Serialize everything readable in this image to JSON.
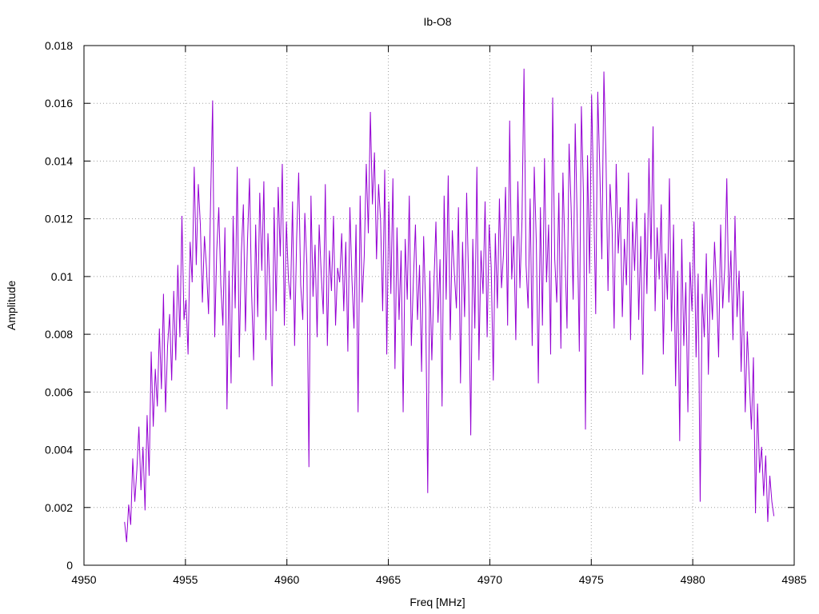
{
  "chart_data": {
    "type": "line",
    "title": "Ib-O8",
    "xlabel": "Freq [MHz]",
    "ylabel": "Amplitude",
    "xlim": [
      4950,
      4985
    ],
    "ylim": [
      0,
      0.018
    ],
    "grid": true,
    "xticks": [
      4950,
      4955,
      4960,
      4965,
      4970,
      4975,
      4980,
      4985
    ],
    "xtick_labels": [
      "4950",
      "4955",
      "4960",
      "4965",
      "4970",
      "4975",
      "4980",
      "4985"
    ],
    "yticks": [
      0,
      0.002,
      0.004,
      0.006,
      0.008,
      0.01,
      0.012,
      0.014,
      0.016,
      0.018
    ],
    "ytick_labels": [
      "0",
      "0.002",
      "0.004",
      "0.006",
      "0.008",
      "0.01",
      "0.012",
      "0.014",
      "0.016",
      "0.018"
    ],
    "series": [
      {
        "color": "#9400d3",
        "x_start": 4952.0,
        "x_end": 4984.0,
        "values": [
          0.0015,
          0.0008,
          0.0021,
          0.0014,
          0.0037,
          0.0022,
          0.0033,
          0.0048,
          0.0026,
          0.0041,
          0.0019,
          0.0052,
          0.0031,
          0.0074,
          0.0048,
          0.0068,
          0.0055,
          0.0082,
          0.0061,
          0.0094,
          0.0053,
          0.0076,
          0.0087,
          0.0064,
          0.0095,
          0.0071,
          0.0104,
          0.0079,
          0.0121,
          0.0085,
          0.0092,
          0.0073,
          0.0112,
          0.0098,
          0.0138,
          0.0104,
          0.0132,
          0.0118,
          0.0091,
          0.0114,
          0.0103,
          0.0087,
          0.0126,
          0.0161,
          0.0079,
          0.0109,
          0.0124,
          0.0097,
          0.0083,
          0.0117,
          0.0054,
          0.0102,
          0.0063,
          0.0121,
          0.0089,
          0.0138,
          0.0072,
          0.0108,
          0.0125,
          0.0081,
          0.0112,
          0.0134,
          0.0095,
          0.0071,
          0.0118,
          0.0086,
          0.0129,
          0.0102,
          0.0133,
          0.0078,
          0.0115,
          0.0094,
          0.0062,
          0.0124,
          0.0088,
          0.0131,
          0.0107,
          0.0139,
          0.0083,
          0.0119,
          0.0099,
          0.0092,
          0.0126,
          0.0076,
          0.0113,
          0.0136,
          0.0097,
          0.0085,
          0.0122,
          0.0104,
          0.0034,
          0.0128,
          0.0093,
          0.0111,
          0.0079,
          0.0118,
          0.0101,
          0.0087,
          0.0132,
          0.0076,
          0.0109,
          0.0095,
          0.0121,
          0.0083,
          0.0103,
          0.0098,
          0.0115,
          0.0088,
          0.0112,
          0.0074,
          0.0124,
          0.0099,
          0.0082,
          0.0118,
          0.0053,
          0.0128,
          0.0091,
          0.0107,
          0.0139,
          0.0115,
          0.0157,
          0.0125,
          0.0143,
          0.0106,
          0.0132,
          0.0119,
          0.0088,
          0.0137,
          0.0073,
          0.0126,
          0.0094,
          0.0134,
          0.0068,
          0.0117,
          0.0085,
          0.0109,
          0.0053,
          0.0113,
          0.0092,
          0.0128,
          0.0076,
          0.0099,
          0.0118,
          0.0085,
          0.0104,
          0.0067,
          0.0114,
          0.0089,
          0.0025,
          0.0102,
          0.0071,
          0.0097,
          0.0119,
          0.0084,
          0.0106,
          0.0055,
          0.0128,
          0.0092,
          0.0135,
          0.0078,
          0.0116,
          0.0101,
          0.0089,
          0.0124,
          0.0063,
          0.0112,
          0.0086,
          0.0129,
          0.0097,
          0.0045,
          0.0113,
          0.0082,
          0.0138,
          0.0071,
          0.0109,
          0.0094,
          0.0126,
          0.0079,
          0.0118,
          0.0103,
          0.0064,
          0.0115,
          0.0089,
          0.0127,
          0.0096,
          0.0108,
          0.0131,
          0.0083,
          0.0154,
          0.0099,
          0.0114,
          0.0078,
          0.0133,
          0.0096,
          0.0119,
          0.0172,
          0.0104,
          0.0089,
          0.0127,
          0.0076,
          0.0138,
          0.0112,
          0.0063,
          0.0124,
          0.0083,
          0.0141,
          0.0098,
          0.0118,
          0.0073,
          0.0162,
          0.0106,
          0.0091,
          0.0129,
          0.0075,
          0.0136,
          0.0108,
          0.0082,
          0.0146,
          0.0124,
          0.0092,
          0.0153,
          0.0118,
          0.0074,
          0.0159,
          0.0129,
          0.0047,
          0.0142,
          0.0101,
          0.0163,
          0.0128,
          0.0087,
          0.0164,
          0.0137,
          0.0106,
          0.0171,
          0.0142,
          0.0095,
          0.0132,
          0.0117,
          0.0082,
          0.0139,
          0.0108,
          0.0124,
          0.0086,
          0.0113,
          0.0097,
          0.0136,
          0.0078,
          0.0119,
          0.0102,
          0.0127,
          0.0085,
          0.0114,
          0.0066,
          0.0122,
          0.0094,
          0.0141,
          0.0106,
          0.0152,
          0.0088,
          0.0117,
          0.0099,
          0.0125,
          0.0073,
          0.0108,
          0.0092,
          0.0134,
          0.0081,
          0.0118,
          0.0062,
          0.0102,
          0.0043,
          0.0113,
          0.0076,
          0.0098,
          0.0053,
          0.0105,
          0.0088,
          0.0119,
          0.0072,
          0.0101,
          0.0022,
          0.0094,
          0.0079,
          0.0108,
          0.0066,
          0.0099,
          0.0085,
          0.0112,
          0.0096,
          0.0072,
          0.0118,
          0.0089,
          0.0103,
          0.0134,
          0.0091,
          0.0109,
          0.0078,
          0.0121,
          0.0086,
          0.0102,
          0.0067,
          0.0095,
          0.0053,
          0.0081,
          0.0064,
          0.0047,
          0.0072,
          0.0018,
          0.0056,
          0.0032,
          0.0041,
          0.0024,
          0.0038,
          0.0015,
          0.0031,
          0.0022,
          0.0017
        ]
      }
    ]
  }
}
